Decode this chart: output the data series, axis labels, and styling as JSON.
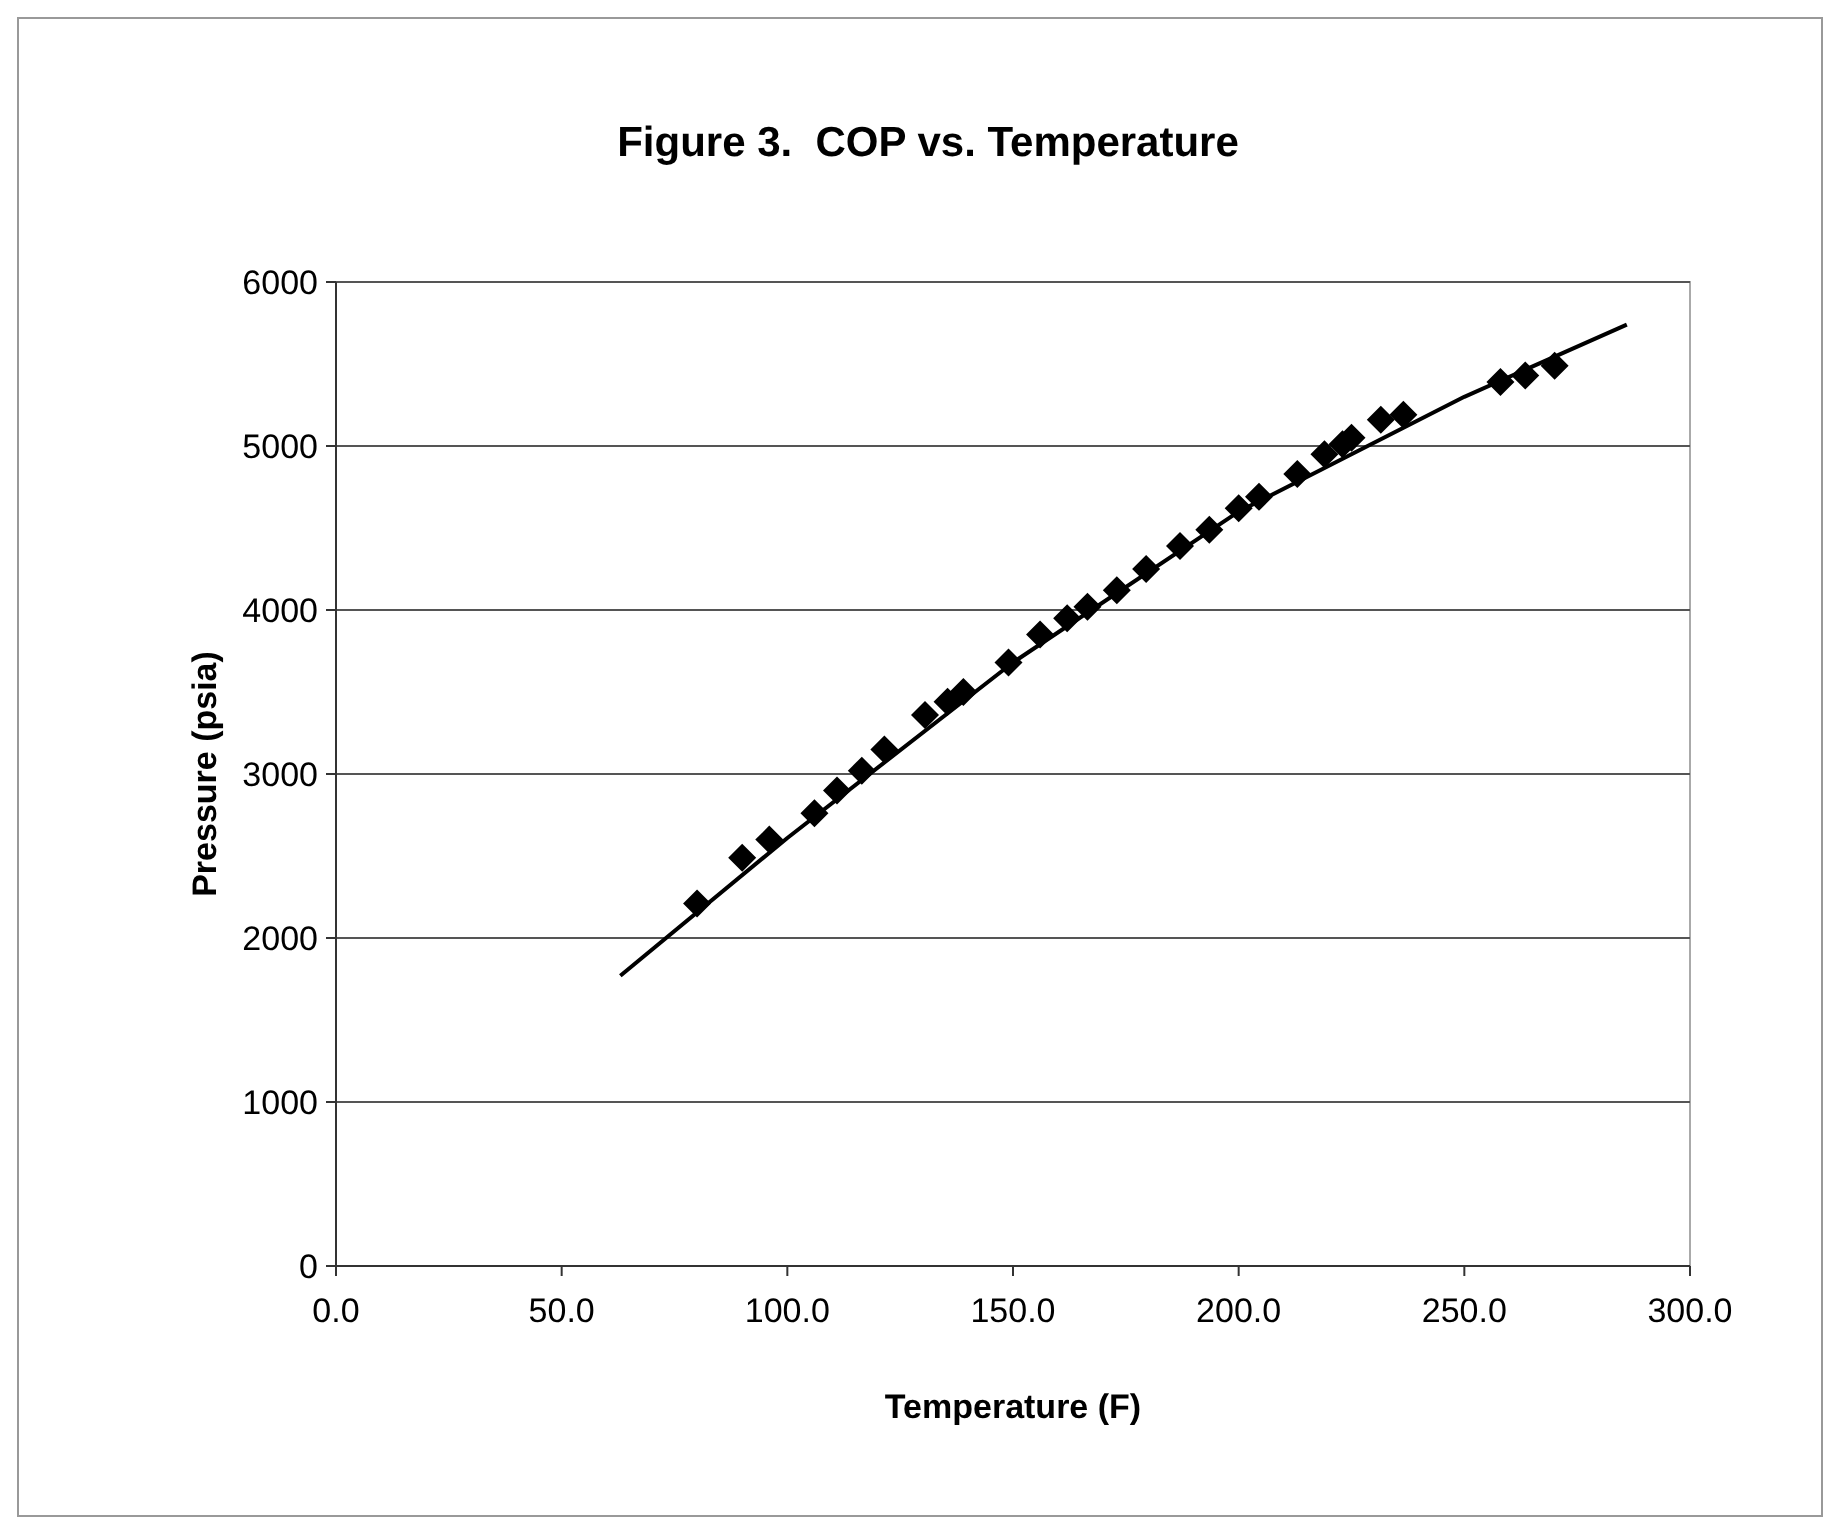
{
  "chart_data": {
    "type": "scatter",
    "title": "Figure 3.  COP vs. Temperature",
    "xlabel": "Temperature (F)",
    "ylabel": "Pressure (psia)",
    "xlim": [
      0,
      300
    ],
    "xticks": [
      {
        "value": 0,
        "label": "0.0"
      },
      {
        "value": 50,
        "label": "50.0"
      },
      {
        "value": 100,
        "label": "100.0"
      },
      {
        "value": 150,
        "label": "150.0"
      },
      {
        "value": 200,
        "label": "200.0"
      },
      {
        "value": 250,
        "label": "250.0"
      },
      {
        "value": 300,
        "label": "300.0"
      }
    ],
    "ylim": [
      0,
      6000
    ],
    "yticks": [
      0,
      1000,
      2000,
      3000,
      4000,
      5000,
      6000
    ],
    "grid": "y",
    "series": [
      {
        "color": "#000000",
        "marker": "diamond",
        "x": [
          80,
          90,
          96,
          106,
          111,
          116.5,
          121.5,
          130.5,
          135.5,
          139,
          149,
          156,
          162,
          166.5,
          173,
          179.5,
          187,
          193.5,
          200,
          204.5,
          213,
          219,
          223,
          225,
          231.5,
          236.5,
          258,
          263.5,
          270
        ],
        "values": [
          2210,
          2490,
          2600,
          2760,
          2900,
          3020,
          3150,
          3360,
          3440,
          3500,
          3680,
          3850,
          3950,
          4020,
          4120,
          4250,
          4390,
          4490,
          4620,
          4690,
          4830,
          4950,
          5010,
          5050,
          5160,
          5190,
          5390,
          5430,
          5490
        ]
      },
      {
        "type": "line",
        "color": "#000000",
        "marker": "none",
        "x": [
          63,
          100,
          150,
          200,
          250,
          286
        ],
        "values": [
          1770,
          2610,
          3680,
          4600,
          5300,
          5740
        ]
      }
    ]
  }
}
